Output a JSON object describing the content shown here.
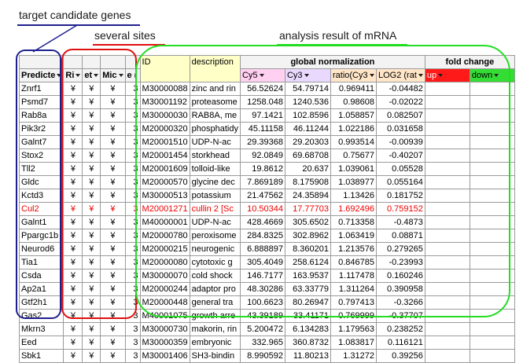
{
  "annotations": {
    "target": "target candidate genes",
    "sites": "several sites",
    "analysis": "analysis result of mRNA"
  },
  "colors": {
    "blue_box": "#1f1f8f",
    "red_box": "#e01010",
    "green_box": "#22dd22",
    "highlight_row_text": "#ee0000"
  },
  "header": {
    "group_global": "global normalization",
    "group_fold": "fold change",
    "predicted": "Predicte",
    "ri": "Ri",
    "et": "et",
    "mic": "Mic",
    "e": "e (",
    "id": "ID",
    "description": "description",
    "cy5": "Cy5",
    "cy3": "Cy3",
    "ratio": "ratio(Cy3",
    "log2": "LOG2 (rat",
    "up": "up",
    "down": "down"
  },
  "rows": [
    {
      "gene": "Znrf1",
      "y1": "¥",
      "y2": "¥",
      "y3": "¥",
      "n": "3",
      "id": "M30000088",
      "desc": "zinc and rin",
      "cy5": "56.52624",
      "cy3": "54.79714",
      "ratio": "0.969411",
      "log2": "-0.04482"
    },
    {
      "gene": "Psmd7",
      "y1": "¥",
      "y2": "¥",
      "y3": "¥",
      "n": "3",
      "id": "M30001192",
      "desc": "proteasome",
      "cy5": "1258.048",
      "cy3": "1240.536",
      "ratio": "0.98608",
      "log2": "-0.02022"
    },
    {
      "gene": "Rab8a",
      "y1": "¥",
      "y2": "¥",
      "y3": "¥",
      "n": "3",
      "id": "M30000030",
      "desc": "RAB8A, me",
      "cy5": "97.1421",
      "cy3": "102.8596",
      "ratio": "1.058857",
      "log2": "0.082507"
    },
    {
      "gene": "Pik3r2",
      "y1": "¥",
      "y2": "¥",
      "y3": "¥",
      "n": "3",
      "id": "M20000320",
      "desc": "phosphatidy",
      "cy5": "45.11158",
      "cy3": "46.11244",
      "ratio": "1.022186",
      "log2": "0.031658"
    },
    {
      "gene": "Galnt7",
      "y1": "¥",
      "y2": "¥",
      "y3": "¥",
      "n": "3",
      "id": "M20001510",
      "desc": "UDP-N-ac",
      "cy5": "29.39368",
      "cy3": "29.20303",
      "ratio": "0.993514",
      "log2": "-0.00939"
    },
    {
      "gene": "Stox2",
      "y1": "¥",
      "y2": "¥",
      "y3": "¥",
      "n": "3",
      "id": "M20001454",
      "desc": "storkhead",
      "cy5": "92.0849",
      "cy3": "69.68708",
      "ratio": "0.75677",
      "log2": "-0.40207"
    },
    {
      "gene": "Tll2",
      "y1": "¥",
      "y2": "¥",
      "y3": "¥",
      "n": "3",
      "id": "M20001609",
      "desc": "tolloid-like",
      "cy5": "19.8612",
      "cy3": "20.637",
      "ratio": "1.039061",
      "log2": "0.05528"
    },
    {
      "gene": "Gldc",
      "y1": "¥",
      "y2": "¥",
      "y3": "¥",
      "n": "3",
      "id": "M20000570",
      "desc": "glycine dec",
      "cy5": "7.869189",
      "cy3": "8.175908",
      "ratio": "1.038977",
      "log2": "0.055164"
    },
    {
      "gene": "Kctd3",
      "y1": "¥",
      "y2": "¥",
      "y3": "¥",
      "n": "3",
      "id": "M30000513",
      "desc": "potassium",
      "cy5": "21.47562",
      "cy3": "24.35894",
      "ratio": "1.13426",
      "log2": "0.181752"
    },
    {
      "gene": "Cul2",
      "y1": "¥",
      "y2": "¥",
      "y3": "¥",
      "n": "3",
      "id": "M20001271",
      "desc": "cullin 2 [Sc",
      "cy5": "10.50344",
      "cy3": "17.77703",
      "ratio": "1.692496",
      "log2": "0.759152",
      "highlight": true
    },
    {
      "gene": "Galnt1",
      "y1": "¥",
      "y2": "¥",
      "y3": "¥",
      "n": "3",
      "id": "M40000001",
      "desc": "UDP-N-ac",
      "cy5": "428.4669",
      "cy3": "305.6502",
      "ratio": "0.713358",
      "log2": "-0.4873"
    },
    {
      "gene": "Ppargc1b",
      "y1": "¥",
      "y2": "¥",
      "y3": "¥",
      "n": "3",
      "id": "M20000780",
      "desc": "peroxisome",
      "cy5": "284.8325",
      "cy3": "302.8962",
      "ratio": "1.063419",
      "log2": "0.08871"
    },
    {
      "gene": "Neurod6",
      "y1": "¥",
      "y2": "¥",
      "y3": "¥",
      "n": "3",
      "id": "M20000215",
      "desc": "neurogenic",
      "cy5": "6.888897",
      "cy3": "8.360201",
      "ratio": "1.213576",
      "log2": "0.279265"
    },
    {
      "gene": "Tia1",
      "y1": "¥",
      "y2": "¥",
      "y3": "¥",
      "n": "3",
      "id": "M20000080",
      "desc": "cytotoxic g",
      "cy5": "305.4049",
      "cy3": "258.6124",
      "ratio": "0.846785",
      "log2": "-0.23993"
    },
    {
      "gene": "Csda",
      "y1": "¥",
      "y2": "¥",
      "y3": "¥",
      "n": "3",
      "id": "M30000070",
      "desc": "cold shock",
      "cy5": "146.7177",
      "cy3": "163.9537",
      "ratio": "1.117478",
      "log2": "0.160246"
    },
    {
      "gene": "Ap2a1",
      "y1": "¥",
      "y2": "¥",
      "y3": "¥",
      "n": "3",
      "id": "M20000244",
      "desc": "adaptor pro",
      "cy5": "48.30286",
      "cy3": "63.33779",
      "ratio": "1.311264",
      "log2": "0.390958"
    },
    {
      "gene": "Gtf2h1",
      "y1": "¥",
      "y2": "¥",
      "y3": "¥",
      "n": "3",
      "id": "M20000448",
      "desc": "general tra",
      "cy5": "100.6623",
      "cy3": "80.26947",
      "ratio": "0.797413",
      "log2": "-0.3266"
    },
    {
      "gene": "Gas2",
      "y1": "¥",
      "y2": "¥",
      "y3": "¥",
      "n": "3",
      "id": "M40001075",
      "desc": "growth arre",
      "cy5": "43.39189",
      "cy3": "33.41171",
      "ratio": "0.769999",
      "log2": "-0.37707"
    },
    {
      "gene": "Mkrn3",
      "y1": "¥",
      "y2": "¥",
      "y3": "¥",
      "n": "3",
      "id": "M30000730",
      "desc": "makorin, rin",
      "cy5": "5.200472",
      "cy3": "6.134283",
      "ratio": "1.179563",
      "log2": "0.238252"
    },
    {
      "gene": "Eed",
      "y1": "¥",
      "y2": "¥",
      "y3": "¥",
      "n": "3",
      "id": "M30000359",
      "desc": "embryonic",
      "cy5": "332.965",
      "cy3": "360.8732",
      "ratio": "1.083817",
      "log2": "0.116121"
    },
    {
      "gene": "Sbk1",
      "y1": "¥",
      "y2": "¥",
      "y3": "¥",
      "n": "3",
      "id": "M30001406",
      "desc": "SH3-bindin",
      "cy5": "8.990592",
      "cy3": "11.80213",
      "ratio": "1.31272",
      "log2": "0.39256"
    }
  ]
}
